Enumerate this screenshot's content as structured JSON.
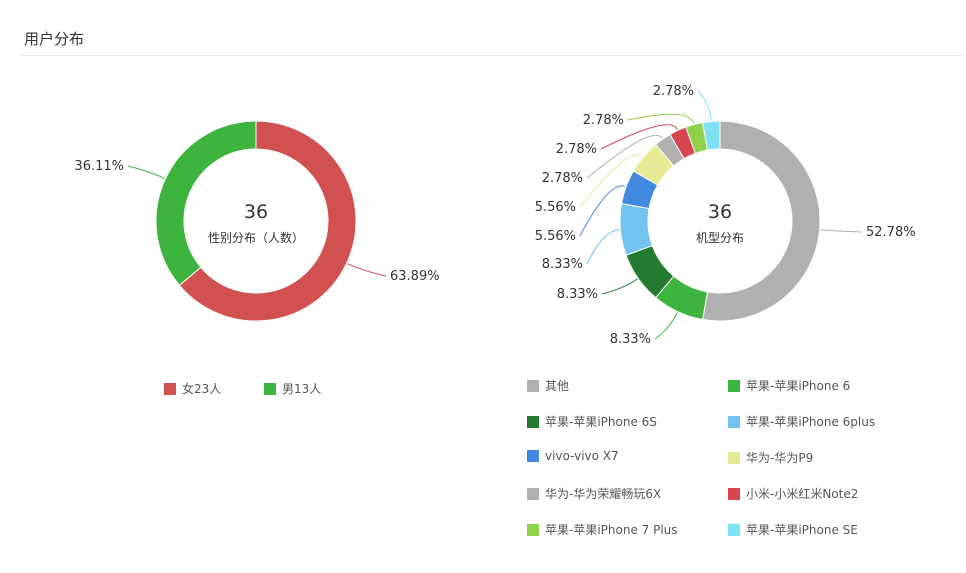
{
  "header": {
    "title": "用户分布"
  },
  "chart_data": [
    {
      "type": "pie",
      "center_value": "36",
      "center_label": "性别分布（人数）",
      "slices": [
        {
          "name": "女23人",
          "value": 23,
          "percent_label": "63.89%",
          "color": "#d15050"
        },
        {
          "name": "男13人",
          "value": 13,
          "percent_label": "36.11%",
          "color": "#3db43d"
        }
      ]
    },
    {
      "type": "pie",
      "center_value": "36",
      "center_label": "机型分布",
      "slices": [
        {
          "name": "其他",
          "value": 19,
          "percent_label": "52.78%",
          "color": "#b0b0b0"
        },
        {
          "name": "苹果-苹果iPhone 6",
          "value": 3,
          "percent_label": "8.33%",
          "color": "#3db43d"
        },
        {
          "name": "苹果-苹果iPhone 6S",
          "value": 3,
          "percent_label": "8.33%",
          "color": "#237a30"
        },
        {
          "name": "苹果-苹果iPhone 6plus",
          "value": 3,
          "percent_label": "8.33%",
          "color": "#72c3ef"
        },
        {
          "name": "vivo-vivo X7",
          "value": 2,
          "percent_label": "5.56%",
          "color": "#4289e0"
        },
        {
          "name": "华为-华为P9",
          "value": 2,
          "percent_label": "5.56%",
          "color": "#e6ea95"
        },
        {
          "name": "华为-华为荣耀畅玩6X",
          "value": 1,
          "percent_label": "2.78%",
          "color": "#b0b0b0"
        },
        {
          "name": "小米-小米红米Note2",
          "value": 1,
          "percent_label": "2.78%",
          "color": "#d64550"
        },
        {
          "name": "苹果-苹果iPhone 7 Plus",
          "value": 1,
          "percent_label": "2.78%",
          "color": "#8fd14a"
        },
        {
          "name": "苹果-苹果iPhone SE",
          "value": 1,
          "percent_label": "2.78%",
          "color": "#7fe3f6"
        }
      ]
    }
  ]
}
